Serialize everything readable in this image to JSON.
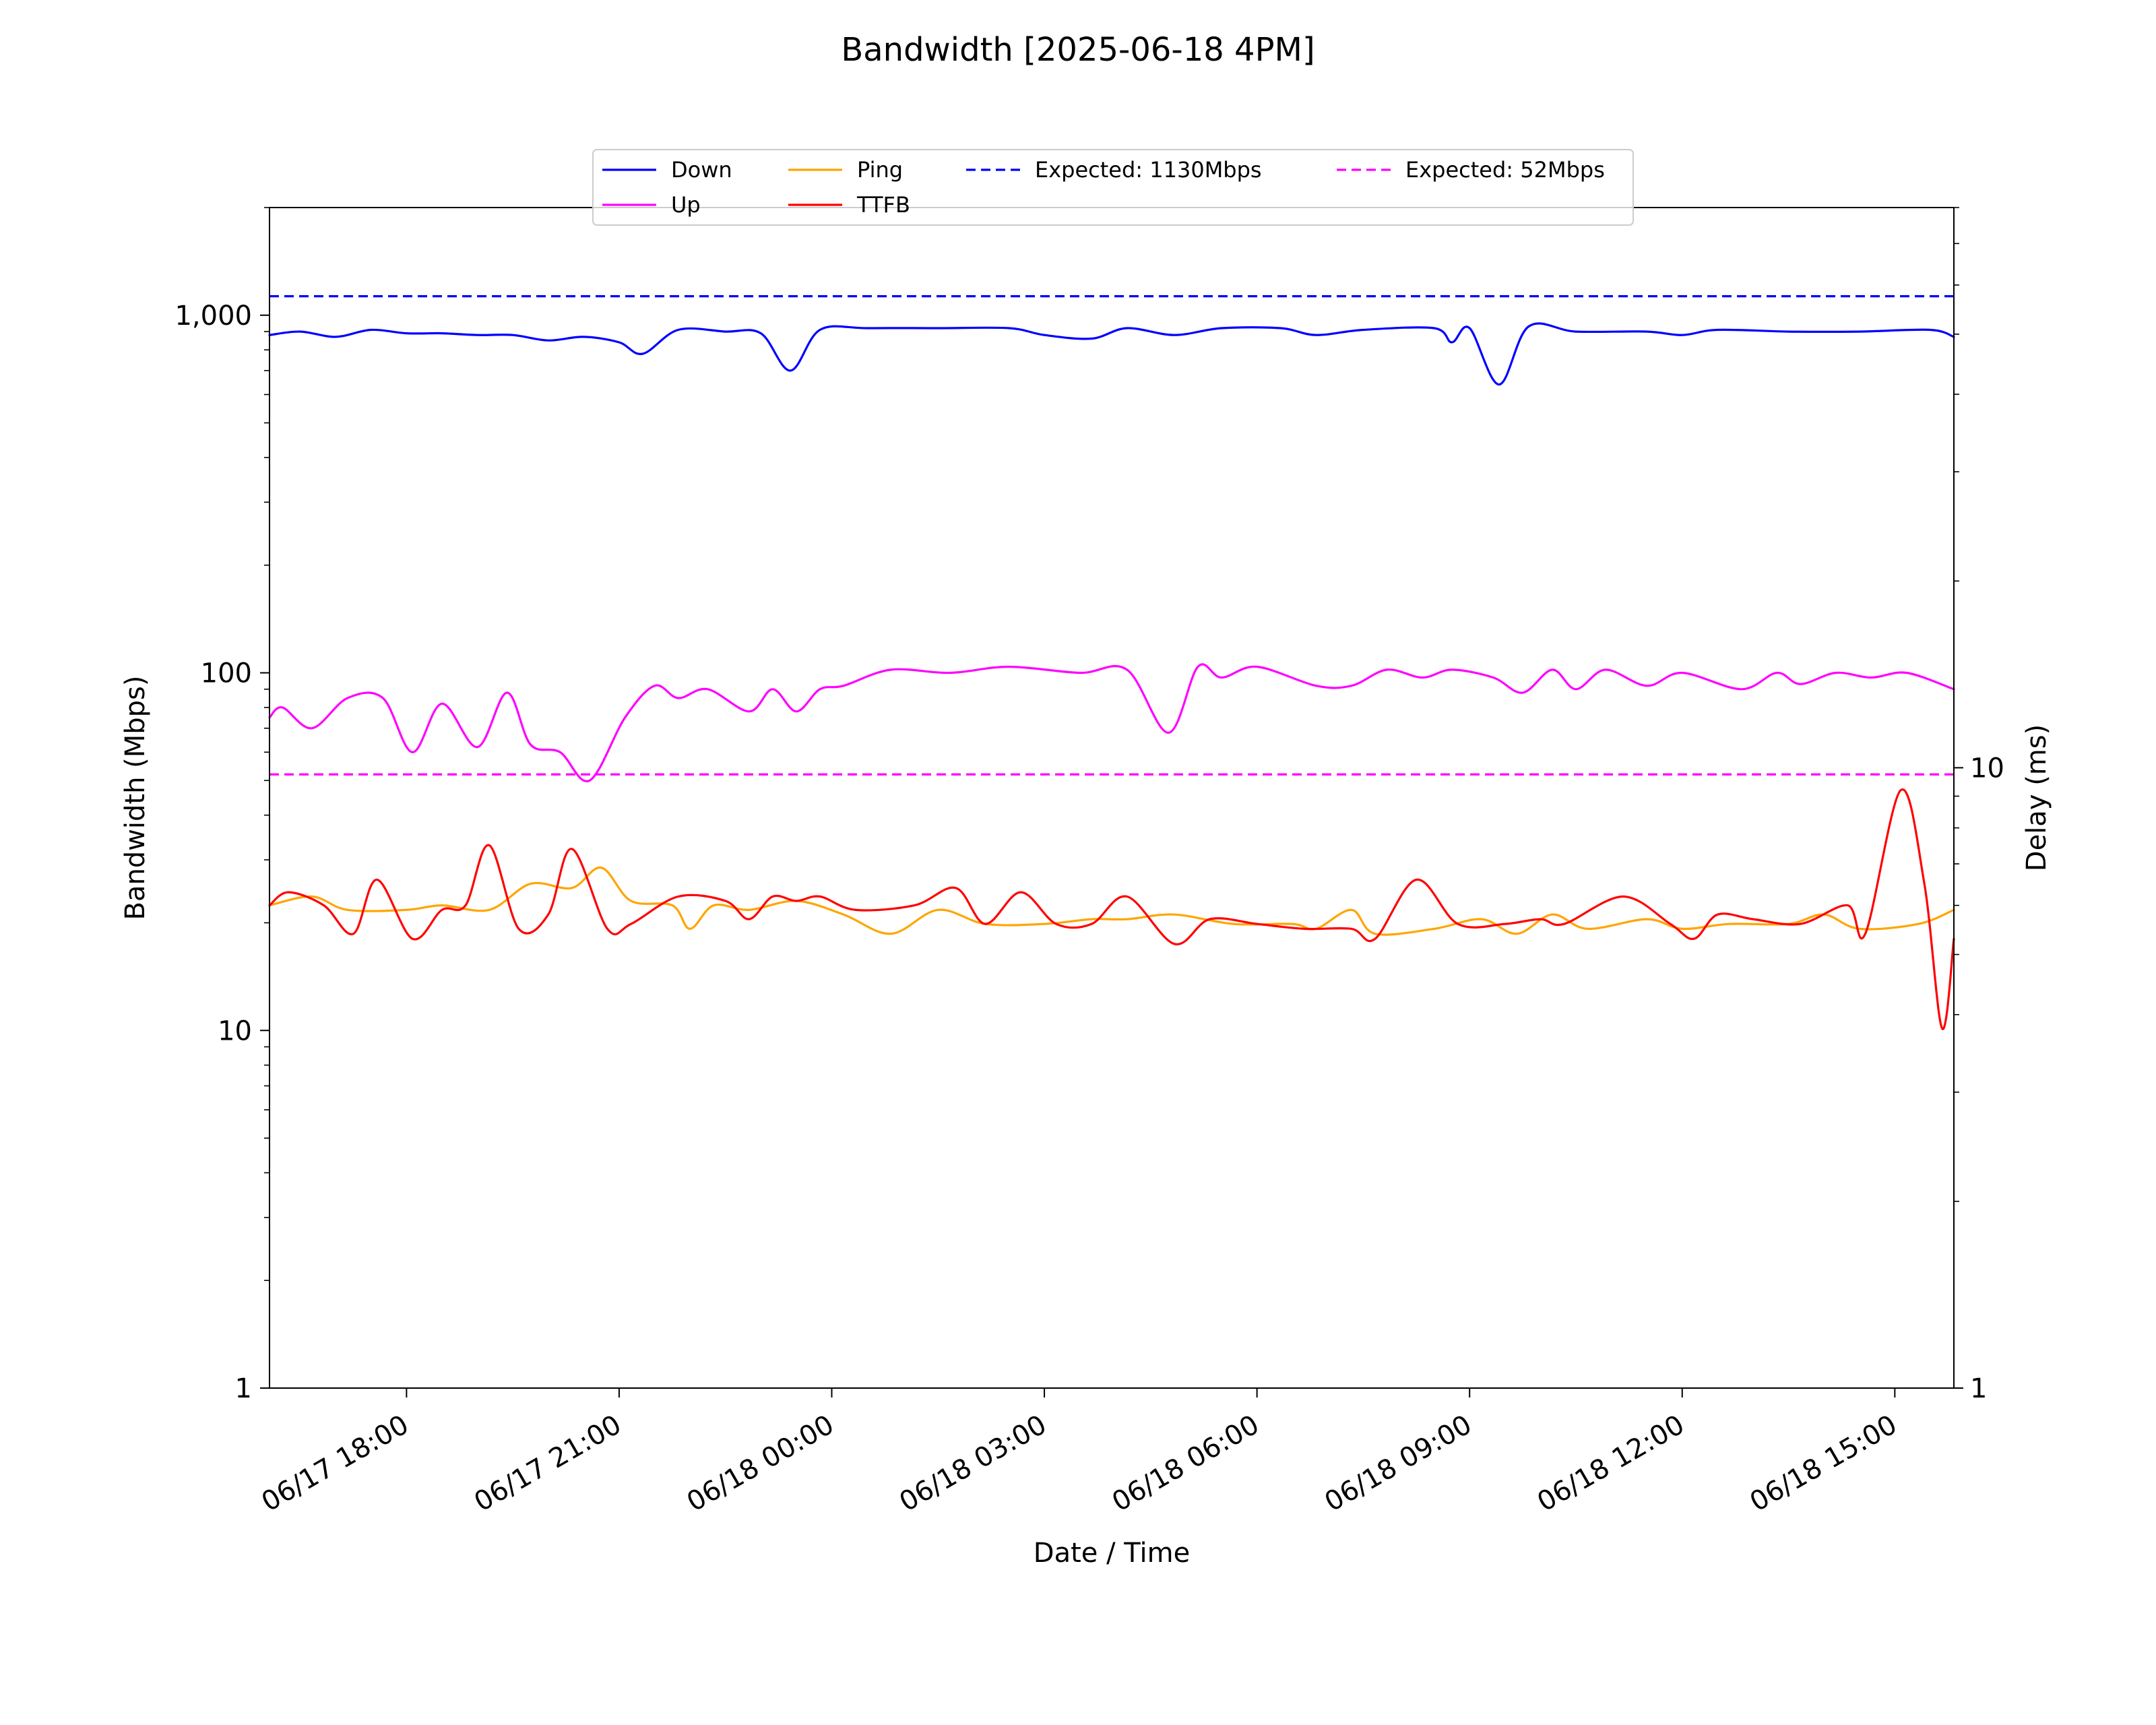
{
  "chart_data": {
    "type": "line",
    "title": "Bandwidth [2025-06-18 4PM]",
    "xlabel": "Date / Time",
    "ylabel": "Bandwidth (Mbps)",
    "y2label": "Delay (ms)",
    "yscale": "log",
    "ylim": [
      1,
      2000
    ],
    "y2scale": "log",
    "y2lim": [
      1,
      80
    ],
    "x_range": [
      "2025-06-17 16:04",
      "2025-06-18 15:50"
    ],
    "x_ticks": [
      {
        "t": "2025-06-17 18:00",
        "label": "06/17 18:00"
      },
      {
        "t": "2025-06-17 21:00",
        "label": "06/17 21:00"
      },
      {
        "t": "2025-06-18 00:00",
        "label": "06/18 00:00"
      },
      {
        "t": "2025-06-18 03:00",
        "label": "06/18 03:00"
      },
      {
        "t": "2025-06-18 06:00",
        "label": "06/18 06:00"
      },
      {
        "t": "2025-06-18 09:00",
        "label": "06/18 09:00"
      },
      {
        "t": "2025-06-18 12:00",
        "label": "06/18 12:00"
      },
      {
        "t": "2025-06-18 15:00",
        "label": "06/18 15:00"
      }
    ],
    "y_ticks": [
      {
        "v": 1,
        "label": "1"
      },
      {
        "v": 10,
        "label": "10"
      },
      {
        "v": 100,
        "label": "100"
      },
      {
        "v": 1000,
        "label": "1,000"
      }
    ],
    "y2_ticks": [
      {
        "v": 1,
        "label": "1"
      },
      {
        "v": 10,
        "label": "10"
      }
    ],
    "grid": false,
    "legend_position": "top-center",
    "series": [
      {
        "name": "Down",
        "axis": "left",
        "color": "#0000ff",
        "style": "solid",
        "x": [
          "2025-06-17 16:04",
          "2025-06-17 16:30",
          "2025-06-17 17:00",
          "2025-06-17 17:30",
          "2025-06-17 18:00",
          "2025-06-17 18:30",
          "2025-06-17 19:00",
          "2025-06-17 19:30",
          "2025-06-17 20:00",
          "2025-06-17 20:30",
          "2025-06-17 21:00",
          "2025-06-17 21:20",
          "2025-06-17 21:50",
          "2025-06-17 22:30",
          "2025-06-17 23:00",
          "2025-06-17 23:25",
          "2025-06-17 23:50",
          "2025-06-18 00:30",
          "2025-06-18 01:30",
          "2025-06-18 02:30",
          "2025-06-18 03:00",
          "2025-06-18 03:40",
          "2025-06-18 04:10",
          "2025-06-18 04:50",
          "2025-06-18 05:30",
          "2025-06-18 06:20",
          "2025-06-18 06:50",
          "2025-06-18 07:30",
          "2025-06-18 08:30",
          "2025-06-18 08:45",
          "2025-06-18 09:00",
          "2025-06-18 09:25",
          "2025-06-18 09:50",
          "2025-06-18 10:30",
          "2025-06-18 11:30",
          "2025-06-18 12:00",
          "2025-06-18 12:30",
          "2025-06-18 13:30",
          "2025-06-18 14:30",
          "2025-06-18 15:30",
          "2025-06-18 15:50"
        ],
        "y": [
          880,
          900,
          870,
          910,
          890,
          890,
          880,
          880,
          850,
          870,
          840,
          780,
          910,
          900,
          890,
          700,
          910,
          920,
          920,
          920,
          880,
          860,
          920,
          880,
          920,
          920,
          880,
          910,
          920,
          840,
          920,
          640,
          930,
          900,
          900,
          880,
          910,
          900,
          900,
          910,
          870
        ]
      },
      {
        "name": "Up",
        "axis": "left",
        "color": "#ff00ff",
        "style": "solid",
        "x": [
          "2025-06-17 16:04",
          "2025-06-17 16:15",
          "2025-06-17 16:40",
          "2025-06-17 17:10",
          "2025-06-17 17:40",
          "2025-06-17 18:05",
          "2025-06-17 18:30",
          "2025-06-17 19:00",
          "2025-06-17 19:25",
          "2025-06-17 19:45",
          "2025-06-17 20:10",
          "2025-06-17 20:35",
          "2025-06-17 21:05",
          "2025-06-17 21:30",
          "2025-06-17 21:50",
          "2025-06-17 22:15",
          "2025-06-17 22:50",
          "2025-06-17 23:10",
          "2025-06-17 23:30",
          "2025-06-17 23:50",
          "2025-06-18 00:10",
          "2025-06-18 00:50",
          "2025-06-18 01:40",
          "2025-06-18 02:30",
          "2025-06-18 03:30",
          "2025-06-18 04:10",
          "2025-06-18 04:45",
          "2025-06-18 05:10",
          "2025-06-18 05:30",
          "2025-06-18 06:00",
          "2025-06-18 06:50",
          "2025-06-18 07:20",
          "2025-06-18 07:50",
          "2025-06-18 08:20",
          "2025-06-18 08:45",
          "2025-06-18 09:20",
          "2025-06-18 09:45",
          "2025-06-18 10:10",
          "2025-06-18 10:30",
          "2025-06-18 10:55",
          "2025-06-18 11:30",
          "2025-06-18 12:00",
          "2025-06-18 12:50",
          "2025-06-18 13:20",
          "2025-06-18 13:40",
          "2025-06-18 14:10",
          "2025-06-18 14:40",
          "2025-06-18 15:10",
          "2025-06-18 15:50"
        ],
        "y": [
          75,
          80,
          70,
          85,
          85,
          60,
          82,
          62,
          88,
          63,
          60,
          50,
          75,
          92,
          85,
          90,
          78,
          90,
          78,
          90,
          92,
          102,
          100,
          104,
          100,
          102,
          68,
          104,
          97,
          104,
          92,
          92,
          102,
          97,
          102,
          97,
          88,
          102,
          90,
          102,
          92,
          100,
          90,
          100,
          93,
          100,
          97,
          100,
          90
        ]
      },
      {
        "name": "Ping",
        "axis": "right",
        "color": "#ffa500",
        "style": "solid",
        "x": [
          "2025-06-17 16:04",
          "2025-06-17 16:40",
          "2025-06-17 17:10",
          "2025-06-17 18:00",
          "2025-06-17 18:30",
          "2025-06-17 19:10",
          "2025-06-17 19:45",
          "2025-06-17 20:20",
          "2025-06-17 20:45",
          "2025-06-17 21:10",
          "2025-06-17 21:45",
          "2025-06-17 22:00",
          "2025-06-17 22:20",
          "2025-06-17 22:50",
          "2025-06-17 23:30",
          "2025-06-18 00:10",
          "2025-06-18 00:50",
          "2025-06-18 01:30",
          "2025-06-18 02:10",
          "2025-06-18 03:00",
          "2025-06-18 03:40",
          "2025-06-18 04:10",
          "2025-06-18 04:50",
          "2025-06-18 05:40",
          "2025-06-18 06:30",
          "2025-06-18 06:50",
          "2025-06-18 07:20",
          "2025-06-18 07:40",
          "2025-06-18 08:30",
          "2025-06-18 09:10",
          "2025-06-18 09:40",
          "2025-06-18 10:10",
          "2025-06-18 10:40",
          "2025-06-18 11:30",
          "2025-06-18 12:00",
          "2025-06-18 12:40",
          "2025-06-18 13:30",
          "2025-06-18 14:00",
          "2025-06-18 14:30",
          "2025-06-18 15:20",
          "2025-06-18 15:50"
        ],
        "y": [
          6.0,
          6.2,
          5.9,
          5.9,
          6.0,
          5.9,
          6.5,
          6.4,
          6.9,
          6.1,
          6.0,
          5.5,
          6.0,
          5.9,
          6.1,
          5.8,
          5.4,
          5.9,
          5.6,
          5.6,
          5.7,
          5.7,
          5.8,
          5.6,
          5.6,
          5.5,
          5.9,
          5.4,
          5.5,
          5.7,
          5.4,
          5.8,
          5.5,
          5.7,
          5.5,
          5.6,
          5.6,
          5.8,
          5.5,
          5.6,
          5.9
        ]
      },
      {
        "name": "TTFB",
        "axis": "right",
        "color": "#ff0000",
        "style": "solid",
        "x": [
          "2025-06-17 16:04",
          "2025-06-17 16:20",
          "2025-06-17 16:50",
          "2025-06-17 17:15",
          "2025-06-17 17:35",
          "2025-06-17 18:05",
          "2025-06-17 18:30",
          "2025-06-17 18:50",
          "2025-06-17 19:10",
          "2025-06-17 19:35",
          "2025-06-17 20:00",
          "2025-06-17 20:20",
          "2025-06-17 20:50",
          "2025-06-17 21:10",
          "2025-06-17 21:50",
          "2025-06-17 22:30",
          "2025-06-17 22:50",
          "2025-06-17 23:10",
          "2025-06-17 23:30",
          "2025-06-17 23:50",
          "2025-06-18 00:20",
          "2025-06-18 01:10",
          "2025-06-18 01:45",
          "2025-06-18 02:10",
          "2025-06-18 02:40",
          "2025-06-18 03:10",
          "2025-06-18 03:40",
          "2025-06-18 04:10",
          "2025-06-18 04:50",
          "2025-06-18 05:20",
          "2025-06-18 06:00",
          "2025-06-18 06:40",
          "2025-06-18 07:20",
          "2025-06-18 07:40",
          "2025-06-18 08:15",
          "2025-06-18 08:50",
          "2025-06-18 09:30",
          "2025-06-18 10:00",
          "2025-06-18 10:20",
          "2025-06-18 11:10",
          "2025-06-18 11:50",
          "2025-06-18 12:10",
          "2025-06-18 12:30",
          "2025-06-18 13:00",
          "2025-06-18 13:40",
          "2025-06-18 14:20",
          "2025-06-18 14:35",
          "2025-06-18 15:05",
          "2025-06-18 15:25",
          "2025-06-18 15:40",
          "2025-06-18 15:50"
        ],
        "y": [
          6.0,
          6.3,
          6.0,
          5.4,
          6.6,
          5.3,
          5.9,
          6.0,
          7.5,
          5.5,
          5.8,
          7.4,
          5.5,
          5.6,
          6.2,
          6.1,
          5.7,
          6.2,
          6.1,
          6.2,
          5.9,
          6.0,
          6.4,
          5.6,
          6.3,
          5.6,
          5.6,
          6.2,
          5.2,
          5.7,
          5.6,
          5.5,
          5.5,
          5.3,
          6.6,
          5.6,
          5.6,
          5.7,
          5.6,
          6.2,
          5.6,
          5.3,
          5.8,
          5.7,
          5.6,
          6.0,
          5.4,
          9.2,
          6.5,
          3.8,
          5.3
        ]
      },
      {
        "name": "Expected: 1130Mbps",
        "axis": "left",
        "color": "#0000ff",
        "style": "dashed",
        "x": [
          "2025-06-17 16:04",
          "2025-06-18 15:50"
        ],
        "y": [
          1130,
          1130
        ]
      },
      {
        "name": "Expected: 52Mbps",
        "axis": "left",
        "color": "#ff00ff",
        "style": "dashed",
        "x": [
          "2025-06-17 16:04",
          "2025-06-18 15:50"
        ],
        "y": [
          52,
          52
        ]
      }
    ]
  }
}
